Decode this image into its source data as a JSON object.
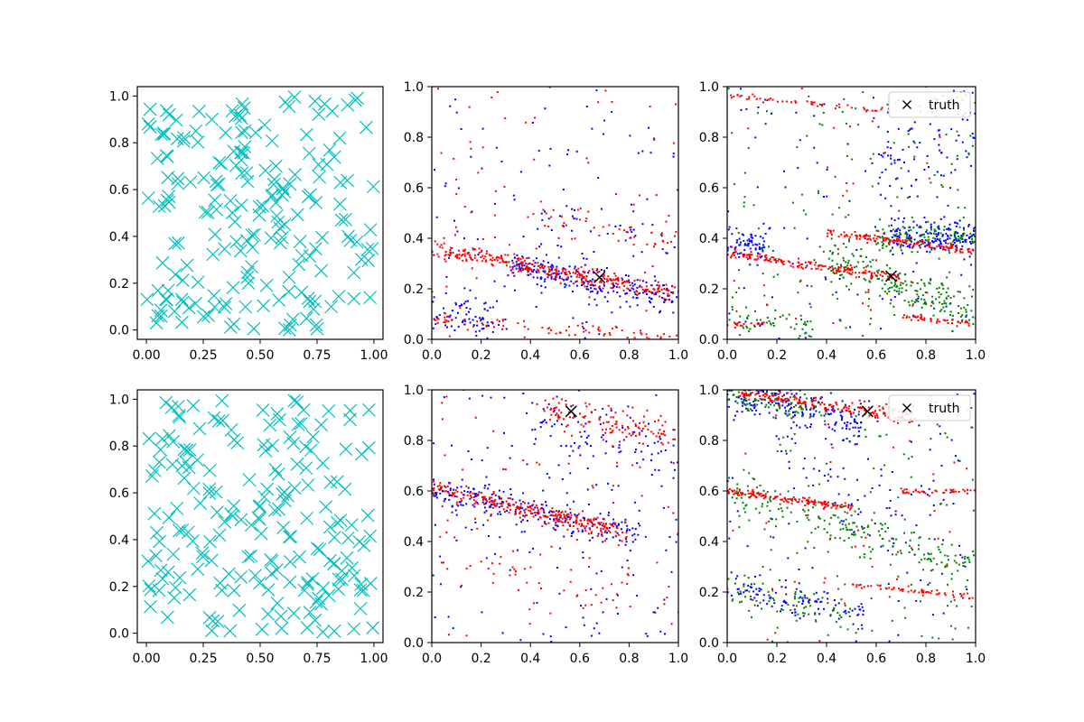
{
  "chart_data": [
    {
      "type": "scatter",
      "panel": "row1-col1",
      "title": "",
      "xlabel": "",
      "ylabel": "",
      "xlim": [
        -0.04,
        1.04
      ],
      "ylim": [
        -0.04,
        1.04
      ],
      "xticks": [
        0.0,
        0.25,
        0.5,
        0.75,
        1.0
      ],
      "xtick_labels": [
        "0.00",
        "0.25",
        "0.50",
        "0.75",
        "1.00"
      ],
      "yticks": [
        0.0,
        0.2,
        0.4,
        0.6,
        0.8,
        1.0
      ],
      "ytick_labels": [
        "0.0",
        "0.2",
        "0.4",
        "0.6",
        "0.8",
        "1.0"
      ],
      "series": [
        {
          "name": "samples",
          "marker": "x",
          "color": "#00bfbf",
          "count": 200,
          "seed": 11,
          "distribution": "uniform"
        }
      ]
    },
    {
      "type": "scatter",
      "panel": "row1-col2",
      "title": "",
      "xlabel": "",
      "ylabel": "",
      "xlim": [
        0.0,
        1.0
      ],
      "ylim": [
        0.0,
        1.0
      ],
      "xticks": [
        0.0,
        0.2,
        0.4,
        0.6,
        0.8,
        1.0
      ],
      "xtick_labels": [
        "0.0",
        "0.2",
        "0.4",
        "0.6",
        "0.8",
        "1.0"
      ],
      "yticks": [
        0.0,
        0.2,
        0.4,
        0.6,
        0.8,
        1.0
      ],
      "ytick_labels": [
        "0.0",
        "0.2",
        "0.4",
        "0.6",
        "0.8",
        "1.0"
      ],
      "series": [
        {
          "name": "blue",
          "color": "#0000ff",
          "count": 420,
          "seed": 101,
          "bands": [
            {
              "slope": -0.2,
              "intercept": 0.36,
              "spread": 0.03,
              "xmin": 0.3,
              "xmax": 1.0,
              "weight": 0.5
            },
            {
              "slope": -0.15,
              "intercept": 0.12,
              "spread": 0.04,
              "xmin": 0.0,
              "xmax": 0.25,
              "weight": 0.15
            },
            {
              "slope": -0.2,
              "intercept": 0.58,
              "spread": 0.04,
              "xmin": 0.4,
              "xmax": 1.0,
              "weight": 0.1
            }
          ]
        },
        {
          "name": "red",
          "color": "#ff0000",
          "count": 520,
          "seed": 202,
          "bands": [
            {
              "slope": -0.18,
              "intercept": 0.36,
              "spread": 0.018,
              "xmin": 0.0,
              "xmax": 1.0,
              "weight": 0.58
            },
            {
              "slope": -0.07,
              "intercept": 0.08,
              "spread": 0.015,
              "xmin": 0.0,
              "xmax": 1.0,
              "weight": 0.15
            },
            {
              "slope": -0.2,
              "intercept": 0.58,
              "spread": 0.03,
              "xmin": 0.4,
              "xmax": 1.0,
              "weight": 0.1
            }
          ]
        }
      ],
      "truth": {
        "x": 0.68,
        "y": 0.245,
        "marker": "x",
        "color": "#000000"
      }
    },
    {
      "type": "scatter",
      "panel": "row1-col3",
      "title": "",
      "xlabel": "",
      "ylabel": "",
      "xlim": [
        0.0,
        1.0
      ],
      "ylim": [
        0.0,
        1.0
      ],
      "xticks": [
        0.0,
        0.2,
        0.4,
        0.6,
        0.8,
        1.0
      ],
      "xtick_labels": [
        "0.0",
        "0.2",
        "0.4",
        "0.6",
        "0.8",
        "1.0"
      ],
      "yticks": [
        0.0,
        0.2,
        0.4,
        0.6,
        0.8,
        1.0
      ],
      "ytick_labels": [
        "0.0",
        "0.2",
        "0.4",
        "0.6",
        "0.8",
        "1.0"
      ],
      "series": [
        {
          "name": "blue",
          "color": "#0000ff",
          "count": 420,
          "seed": 303,
          "bands": [
            {
              "slope": 0.0,
              "intercept": 0.41,
              "spread": 0.03,
              "xmin": 0.65,
              "xmax": 1.0,
              "weight": 0.4
            },
            {
              "slope": -0.1,
              "intercept": 0.38,
              "spread": 0.03,
              "xmin": 0.0,
              "xmax": 0.15,
              "weight": 0.15
            },
            {
              "slope": 0.3,
              "intercept": 0.5,
              "spread": 0.1,
              "xmin": 0.6,
              "xmax": 1.0,
              "weight": 0.15
            }
          ]
        },
        {
          "name": "green",
          "color": "#008000",
          "count": 480,
          "seed": 404,
          "bands": [
            {
              "slope": -0.35,
              "intercept": 0.45,
              "spread": 0.04,
              "xmin": 0.4,
              "xmax": 1.0,
              "weight": 0.4
            },
            {
              "slope": 0.0,
              "intercept": 0.4,
              "spread": 0.03,
              "xmin": 0.6,
              "xmax": 1.0,
              "weight": 0.2
            },
            {
              "slope": -0.1,
              "intercept": 0.1,
              "spread": 0.04,
              "xmin": 0.0,
              "xmax": 0.35,
              "weight": 0.1
            }
          ]
        },
        {
          "name": "red",
          "color": "#ff0000",
          "count": 460,
          "seed": 505,
          "bands": [
            {
              "slope": -0.14,
              "intercept": 0.34,
              "spread": 0.01,
              "xmin": 0.0,
              "xmax": 0.7,
              "weight": 0.45
            },
            {
              "slope": -0.12,
              "intercept": 0.47,
              "spread": 0.008,
              "xmin": 0.4,
              "xmax": 1.0,
              "weight": 0.3
            },
            {
              "slope": -0.1,
              "intercept": 0.16,
              "spread": 0.006,
              "xmin": 0.7,
              "xmax": 1.0,
              "weight": 0.1
            },
            {
              "slope": -0.1,
              "intercept": 0.965,
              "spread": 0.006,
              "xmin": 0.0,
              "xmax": 0.65,
              "weight": 0.1
            },
            {
              "slope": 0.0,
              "intercept": 0.06,
              "spread": 0.006,
              "xmin": 0.0,
              "xmax": 0.15,
              "weight": 0.05
            }
          ]
        }
      ],
      "truth": {
        "x": 0.66,
        "y": 0.25,
        "marker": "x",
        "color": "#000000"
      },
      "legend": {
        "label": "truth",
        "placement": "top-right"
      }
    },
    {
      "type": "scatter",
      "panel": "row2-col1",
      "title": "",
      "xlabel": "",
      "ylabel": "",
      "xlim": [
        -0.04,
        1.04
      ],
      "ylim": [
        -0.04,
        1.04
      ],
      "xticks": [
        0.0,
        0.25,
        0.5,
        0.75,
        1.0
      ],
      "xtick_labels": [
        "0.00",
        "0.25",
        "0.50",
        "0.75",
        "1.00"
      ],
      "yticks": [
        0.0,
        0.2,
        0.4,
        0.6,
        0.8,
        1.0
      ],
      "ytick_labels": [
        "0.0",
        "0.2",
        "0.4",
        "0.6",
        "0.8",
        "1.0"
      ],
      "series": [
        {
          "name": "samples",
          "marker": "x",
          "color": "#00bfbf",
          "count": 200,
          "seed": 23,
          "distribution": "uniform"
        }
      ]
    },
    {
      "type": "scatter",
      "panel": "row2-col2",
      "title": "",
      "xlabel": "",
      "ylabel": "",
      "xlim": [
        0.0,
        1.0
      ],
      "ylim": [
        0.0,
        1.0
      ],
      "xticks": [
        0.0,
        0.2,
        0.4,
        0.6,
        0.8,
        1.0
      ],
      "xtick_labels": [
        "0.0",
        "0.2",
        "0.4",
        "0.6",
        "0.8",
        "1.0"
      ],
      "yticks": [
        0.0,
        0.2,
        0.4,
        0.6,
        0.8,
        1.0
      ],
      "ytick_labels": [
        "0.0",
        "0.2",
        "0.4",
        "0.6",
        "0.8",
        "1.0"
      ],
      "series": [
        {
          "name": "blue",
          "color": "#0000ff",
          "count": 420,
          "seed": 606,
          "bands": [
            {
              "slope": -0.22,
              "intercept": 0.61,
              "spread": 0.03,
              "xmin": 0.0,
              "xmax": 0.85,
              "weight": 0.45
            },
            {
              "slope": -0.2,
              "intercept": 0.95,
              "spread": 0.05,
              "xmin": 0.4,
              "xmax": 1.0,
              "weight": 0.15
            }
          ]
        },
        {
          "name": "red",
          "color": "#ff0000",
          "count": 520,
          "seed": 707,
          "bands": [
            {
              "slope": -0.22,
              "intercept": 0.61,
              "spread": 0.018,
              "xmin": 0.0,
              "xmax": 0.8,
              "weight": 0.5
            },
            {
              "slope": -0.22,
              "intercept": 1.03,
              "spread": 0.035,
              "xmin": 0.45,
              "xmax": 1.0,
              "weight": 0.25
            },
            {
              "slope": -0.2,
              "intercept": 0.35,
              "spread": 0.05,
              "xmin": 0.0,
              "xmax": 1.0,
              "weight": 0.1
            }
          ]
        }
      ],
      "truth": {
        "x": 0.565,
        "y": 0.915,
        "marker": "x",
        "color": "#000000"
      }
    },
    {
      "type": "scatter",
      "panel": "row2-col3",
      "title": "",
      "xlabel": "",
      "ylabel": "",
      "xlim": [
        0.0,
        1.0
      ],
      "ylim": [
        0.0,
        1.0
      ],
      "xticks": [
        0.0,
        0.2,
        0.4,
        0.6,
        0.8,
        1.0
      ],
      "xtick_labels": [
        "0.0",
        "0.2",
        "0.4",
        "0.6",
        "0.8",
        "1.0"
      ],
      "yticks": [
        0.0,
        0.2,
        0.4,
        0.6,
        0.8,
        1.0
      ],
      "ytick_labels": [
        "0.0",
        "0.2",
        "0.4",
        "0.6",
        "0.8",
        "1.0"
      ],
      "series": [
        {
          "name": "blue",
          "color": "#0000ff",
          "count": 440,
          "seed": 808,
          "bands": [
            {
              "slope": -0.25,
              "intercept": 1.0,
              "spread": 0.04,
              "xmin": 0.0,
              "xmax": 0.55,
              "weight": 0.4
            },
            {
              "slope": -0.2,
              "intercept": 0.22,
              "spread": 0.03,
              "xmin": 0.0,
              "xmax": 0.55,
              "weight": 0.25
            },
            {
              "slope": -0.4,
              "intercept": 0.8,
              "spread": 0.1,
              "xmin": 0.2,
              "xmax": 0.9,
              "weight": 0.15
            }
          ]
        },
        {
          "name": "green",
          "color": "#008000",
          "count": 460,
          "seed": 909,
          "bands": [
            {
              "slope": -0.3,
              "intercept": 0.6,
              "spread": 0.04,
              "xmin": 0.0,
              "xmax": 1.0,
              "weight": 0.4
            },
            {
              "slope": -0.25,
              "intercept": 1.0,
              "spread": 0.03,
              "xmin": 0.0,
              "xmax": 0.4,
              "weight": 0.2
            },
            {
              "slope": -0.2,
              "intercept": 0.2,
              "spread": 0.04,
              "xmin": 0.0,
              "xmax": 0.5,
              "weight": 0.15
            }
          ]
        },
        {
          "name": "red",
          "color": "#ff0000",
          "count": 460,
          "seed": 1010,
          "bands": [
            {
              "slope": -0.14,
              "intercept": 0.995,
              "spread": 0.012,
              "xmin": 0.05,
              "xmax": 0.75,
              "weight": 0.4
            },
            {
              "slope": -0.13,
              "intercept": 0.6,
              "spread": 0.008,
              "xmin": 0.0,
              "xmax": 0.5,
              "weight": 0.3
            },
            {
              "slope": -0.1,
              "intercept": 0.28,
              "spread": 0.006,
              "xmin": 0.5,
              "xmax": 1.0,
              "weight": 0.15
            },
            {
              "slope": 0.0,
              "intercept": 0.6,
              "spread": 0.006,
              "xmin": 0.7,
              "xmax": 1.0,
              "weight": 0.1
            }
          ]
        }
      ],
      "truth": {
        "x": 0.565,
        "y": 0.915,
        "marker": "x",
        "color": "#000000"
      },
      "legend": {
        "label": "truth",
        "placement": "top-right"
      }
    }
  ]
}
